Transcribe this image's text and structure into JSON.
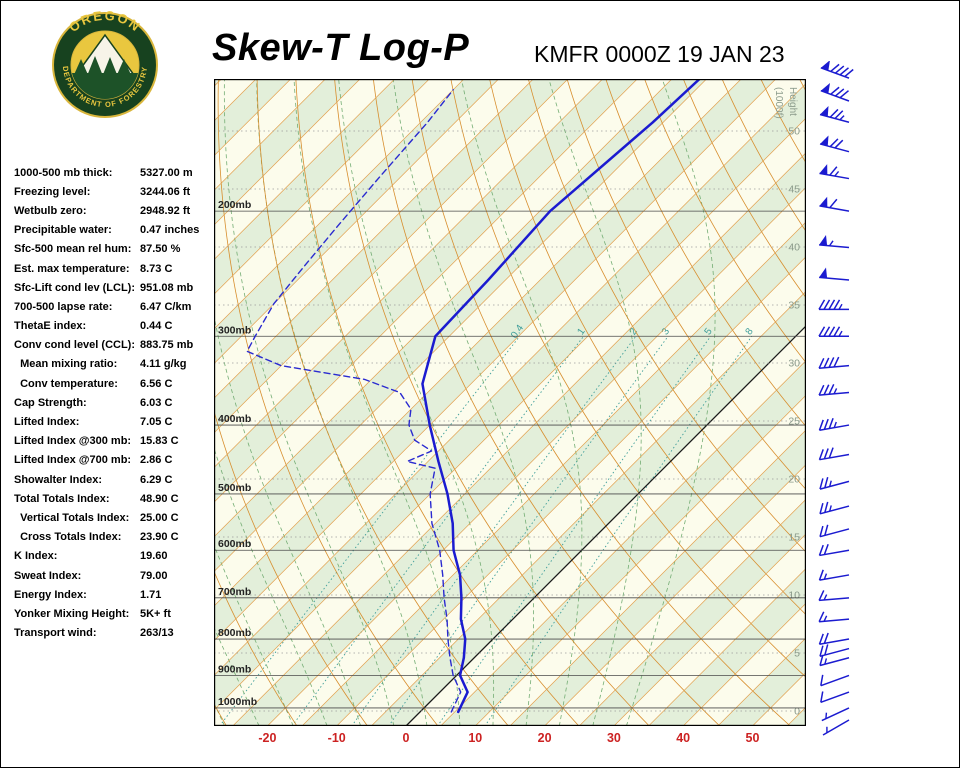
{
  "header": {
    "title": "Skew-T Log-P",
    "station": "KMFR 0000Z 19 JAN 23"
  },
  "logo": {
    "arc_top": "OREGON",
    "arc_bottom": "DEPARTMENT OF FORESTRY"
  },
  "indices": [
    {
      "label": "1000-500 mb thick:",
      "value": "5327.00 m"
    },
    {
      "label": "Freezing level:",
      "value": "3244.06 ft"
    },
    {
      "label": "Wetbulb zero:",
      "value": "2948.92 ft"
    },
    {
      "label": "Precipitable water:",
      "value": "0.47 inches"
    },
    {
      "label": "Sfc-500 mean rel hum:",
      "value": "87.50 %"
    },
    {
      "label": "Est. max temperature:",
      "value": "8.73 C"
    },
    {
      "label": "Sfc-Lift cond lev (LCL):",
      "value": "951.08 mb"
    },
    {
      "label": "700-500 lapse rate:",
      "value": "6.47 C/km"
    },
    {
      "label": "ThetaE index:",
      "value": "0.44 C"
    },
    {
      "label": "Conv cond level (CCL):",
      "value": "883.75 mb"
    },
    {
      "label": "  Mean mixing ratio:",
      "value": "4.11 g/kg"
    },
    {
      "label": "  Conv temperature:",
      "value": "6.56 C"
    },
    {
      "label": "Cap Strength:",
      "value": "6.03 C"
    },
    {
      "label": "Lifted Index:",
      "value": "7.05 C"
    },
    {
      "label": "Lifted Index @300 mb:",
      "value": "15.83 C"
    },
    {
      "label": "Lifted Index @700 mb:",
      "value": "2.86 C"
    },
    {
      "label": "Showalter Index:",
      "value": "6.29 C"
    },
    {
      "label": "Total Totals Index:",
      "value": "48.90 C"
    },
    {
      "label": "  Vertical Totals Index:",
      "value": "25.00 C"
    },
    {
      "label": "  Cross Totals Index:",
      "value": "23.90 C"
    },
    {
      "label": "K Index:",
      "value": "19.60"
    },
    {
      "label": "Sweat Index:",
      "value": "79.00"
    },
    {
      "label": "Energy Index:",
      "value": "1.71"
    },
    {
      "label": "Yonker Mixing Height:",
      "value": "5K+ ft"
    },
    {
      "label": "Transport wind:",
      "value": "263/13"
    }
  ],
  "chart_data": {
    "type": "line",
    "chart_kind": "skew-t-log-p-sounding",
    "title": "Skew-T Log-P",
    "station": "KMFR 0000Z 19 JAN 23",
    "x_axis": {
      "unit": "C",
      "ticks": [
        -20,
        -10,
        0,
        10,
        20,
        30,
        40,
        50
      ]
    },
    "pressure_axis": {
      "suffix": "mb",
      "ticks": [
        200,
        300,
        400,
        500,
        600,
        700,
        800,
        900,
        1000
      ]
    },
    "height_axis": {
      "title": "Height",
      "subtitle": "(1000f)",
      "ticks": [
        50,
        45,
        40,
        35,
        30,
        25,
        20,
        15,
        10,
        5,
        0
      ]
    },
    "mixing_ratio": {
      "unit": "g/kg",
      "values": [
        0.4,
        1,
        2,
        3,
        5,
        8
      ]
    },
    "isotherm_step_c": 5,
    "series": [
      {
        "name": "temperature",
        "style": "solid",
        "color": "#1b1bd0",
        "points": [
          [
            1013,
            5.5
          ],
          [
            950,
            4
          ],
          [
            900,
            0.5
          ],
          [
            850,
            -1.5
          ],
          [
            800,
            -4
          ],
          [
            750,
            -7.5
          ],
          [
            700,
            -10.5
          ],
          [
            650,
            -14
          ],
          [
            600,
            -18.5
          ],
          [
            550,
            -22.5
          ],
          [
            500,
            -27.5
          ],
          [
            450,
            -33.5
          ],
          [
            400,
            -40
          ],
          [
            350,
            -47
          ],
          [
            300,
            -52
          ],
          [
            250,
            -52.5
          ],
          [
            200,
            -53.5
          ],
          [
            150,
            -51.5
          ],
          [
            130,
            -51
          ]
        ]
      },
      {
        "name": "dewpoint",
        "style": "dashed",
        "color": "#2a2ad0",
        "points": [
          [
            1013,
            4.5
          ],
          [
            950,
            3
          ],
          [
            900,
            -0.5
          ],
          [
            850,
            -3.5
          ],
          [
            800,
            -6.5
          ],
          [
            750,
            -9.5
          ],
          [
            700,
            -13
          ],
          [
            650,
            -16.5
          ],
          [
            600,
            -20.5
          ],
          [
            550,
            -25.5
          ],
          [
            500,
            -30
          ],
          [
            460,
            -33
          ],
          [
            450,
            -38
          ],
          [
            435,
            -36
          ],
          [
            420,
            -40
          ],
          [
            400,
            -43
          ],
          [
            380,
            -45
          ],
          [
            360,
            -49
          ],
          [
            345,
            -56
          ],
          [
            330,
            -70
          ],
          [
            315,
            -77
          ],
          [
            300,
            -78
          ],
          [
            270,
            -80
          ],
          [
            240,
            -81
          ],
          [
            210,
            -82
          ],
          [
            180,
            -83
          ],
          [
            150,
            -84
          ],
          [
            135,
            -85
          ]
        ]
      }
    ],
    "winds": [
      [
        130,
        290,
        90
      ],
      [
        140,
        290,
        80
      ],
      [
        150,
        285,
        75
      ],
      [
        165,
        285,
        70
      ],
      [
        180,
        280,
        65
      ],
      [
        200,
        280,
        60
      ],
      [
        225,
        275,
        55
      ],
      [
        250,
        275,
        50
      ],
      [
        275,
        270,
        45
      ],
      [
        300,
        270,
        45
      ],
      [
        330,
        265,
        40
      ],
      [
        360,
        265,
        35
      ],
      [
        400,
        260,
        35
      ],
      [
        440,
        260,
        30
      ],
      [
        480,
        255,
        25
      ],
      [
        520,
        255,
        25
      ],
      [
        560,
        255,
        20
      ],
      [
        600,
        260,
        20
      ],
      [
        650,
        260,
        15
      ],
      [
        700,
        265,
        15
      ],
      [
        750,
        265,
        15
      ],
      [
        800,
        260,
        20
      ],
      [
        825,
        255,
        20
      ],
      [
        850,
        255,
        15
      ],
      [
        900,
        250,
        10
      ],
      [
        950,
        250,
        10
      ],
      [
        1000,
        245,
        5
      ],
      [
        1040,
        240,
        5
      ]
    ],
    "colors": {
      "band_green": "#e3efda",
      "band_cream": "#fcfcec",
      "isotherm": "#e2a04e",
      "zero_isotherm": "#1a1a1a",
      "dry_adiabat": "#d78e2e",
      "moist_adiabat": "#74ad74",
      "mixing_ratio": "#3f9e9a",
      "pressure_line": "#4a4a4a",
      "pressure_label": "#222222",
      "height_line": "#9a9a9a",
      "height_label": "#8b9b8b",
      "temp_axis": "#cc2222",
      "wind": "#1b1bd0"
    }
  }
}
